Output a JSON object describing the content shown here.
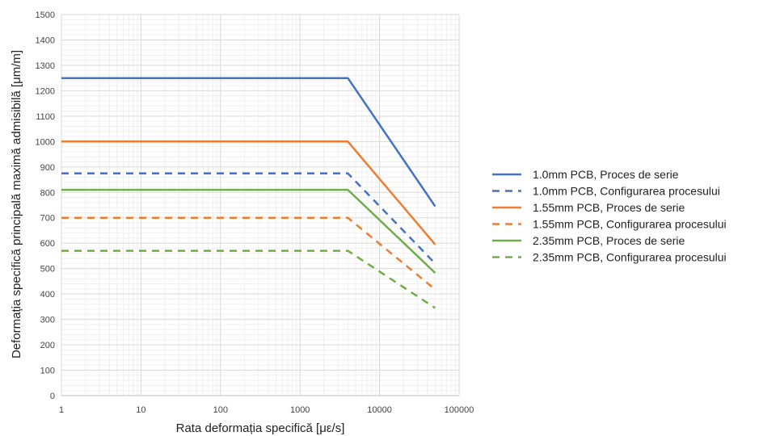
{
  "chart_data": {
    "type": "line",
    "title": "",
    "xlabel": "Rata deformația specifică [με/s]",
    "ylabel": "Deformația specifică principală maximă admisibilă [μm/m]",
    "x_scale": "log",
    "xlim": [
      1,
      100000
    ],
    "ylim": [
      0,
      1500
    ],
    "x_ticks": [
      1,
      10,
      100,
      1000,
      10000,
      100000
    ],
    "x_tick_labels": [
      "1",
      "10",
      "100",
      "1000",
      "10000",
      "100000"
    ],
    "y_ticks": [
      0,
      100,
      200,
      300,
      400,
      500,
      600,
      700,
      800,
      900,
      1000,
      1100,
      1200,
      1300,
      1400,
      1500
    ],
    "grid": true,
    "legend_position": "right",
    "series": [
      {
        "name": "1.0mm PCB, Proces de serie",
        "color": "#4472C4",
        "dash": "solid",
        "x": [
          1,
          4000,
          50000
        ],
        "y": [
          1250,
          1250,
          745
        ]
      },
      {
        "name": "1.0mm PCB, Configurarea procesului",
        "color": "#4472C4",
        "dash": "dashed",
        "x": [
          1,
          4000,
          50000
        ],
        "y": [
          875,
          875,
          520
        ]
      },
      {
        "name": "1.55mm PCB, Proces de serie",
        "color": "#ED7D31",
        "dash": "solid",
        "x": [
          1,
          4000,
          50000
        ],
        "y": [
          1000,
          1000,
          595
        ]
      },
      {
        "name": "1.55mm PCB, Configurarea procesului",
        "color": "#ED7D31",
        "dash": "dashed",
        "x": [
          1,
          4000,
          50000
        ],
        "y": [
          700,
          700,
          418
        ]
      },
      {
        "name": "2.35mm PCB, Proces de serie",
        "color": "#70AD47",
        "dash": "solid",
        "x": [
          1,
          4000,
          50000
        ],
        "y": [
          810,
          810,
          483
        ]
      },
      {
        "name": "2.35mm PCB, Configurarea procesului",
        "color": "#70AD47",
        "dash": "dashed",
        "x": [
          1,
          4000,
          50000
        ],
        "y": [
          570,
          570,
          345
        ]
      }
    ]
  }
}
